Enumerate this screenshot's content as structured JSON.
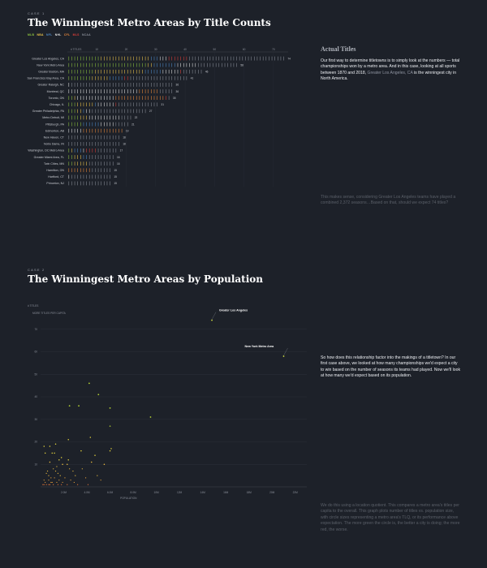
{
  "colors": {
    "background": "#1d2129",
    "MLB": "#8fc63f",
    "NBA": "#f2c94c",
    "NFL": "#4f8bc9",
    "NHL": "#e6e6e6",
    "CFL": "#f08c3c",
    "MLS": "#e0403a",
    "NCAA": "#8a8f99"
  },
  "case1": {
    "tag": "CASE 1",
    "title": "The Winningest Metro Areas by Title Counts",
    "legend": [
      "MLB",
      "NBA",
      "NFL",
      "NHL",
      "CFL",
      "MLS",
      "NCAA"
    ],
    "side_heading": "Actual Titles",
    "side_text": {
      "before": "Our first way to determine titletowns is to simply look at the numbers — total championships won by a metro area. And in this case, looking at all sports between 1870 and 2018,",
      "highlight": "Greater Los Angeles, CA",
      "after": "is the winningest city in North America."
    },
    "side_text_2": "This makes sense, considering Greater Los Angeles teams have played a combined 2,372 seasons…Based on that, should we expect 74 titles?"
  },
  "case2": {
    "tag": "CASE 2",
    "title": "The Winningest Metro Areas by Population",
    "side_text": "So how does this relationship factor into the makings of a titletown? In our first case above, we looked at how many championships we'd expect a city to win based on the number of seasons its teams had played. Now we'll look at how many we'd expect based on its population.",
    "side_text_2": "We do this using a location quotient. This compares a metro area's titles per capita to the overall. This graph plots number of titles vs. population size, with circle sizes representing a metro area's TLQ, or its performance above expectation. The more green the circle is, the better a city is doing; the more red, the worse."
  },
  "chart_data": [
    {
      "type": "bar",
      "title": "The Winningest Metro Areas by Title Counts",
      "x_axis_label": "# TITLES",
      "x_ticks": [
        10,
        20,
        30,
        40,
        50,
        60,
        70
      ],
      "xlim": [
        0,
        75
      ],
      "categories": [
        "Greater Los Angeles, CA",
        "New York Metro Area",
        "Greater Boston, MA",
        "San Francisco Bay Area, CA",
        "Greater Raleigh, NC",
        "Montreal, QC",
        "Toronto, ON",
        "Chicago, IL",
        "Greater Philadelphia, PA",
        "Metro Detroit, MI",
        "Pittsburgh, PA",
        "Edmonton, AB",
        "New Haven, CT",
        "Notre Dame, IN",
        "Washington, DC Metro Area",
        "Greater Miami Area, FL",
        "Twin Cities, MN",
        "Hamilton, ON",
        "Hartford, CT",
        "Princeton, NJ"
      ],
      "values": [
        74,
        58,
        46,
        41,
        36,
        36,
        35,
        31,
        27,
        22,
        21,
        19,
        18,
        18,
        17,
        16,
        16,
        15,
        15,
        15
      ],
      "series_by_league": [
        {
          "name": "MLB",
          "values": [
            11,
            27,
            9,
            8,
            0,
            0,
            2,
            3,
            3,
            4,
            5,
            0,
            0,
            0,
            1,
            2,
            2,
            0,
            0,
            0
          ]
        },
        {
          "name": "NBA",
          "values": [
            17,
            2,
            17,
            6,
            0,
            0,
            1,
            6,
            2,
            3,
            0,
            0,
            0,
            0,
            1,
            3,
            5,
            0,
            0,
            0
          ]
        },
        {
          "name": "NFL",
          "values": [
            3,
            8,
            6,
            5,
            0,
            0,
            0,
            1,
            1,
            0,
            6,
            0,
            0,
            0,
            3,
            2,
            0,
            0,
            0,
            0
          ]
        },
        {
          "name": "NHL",
          "values": [
            3,
            7,
            6,
            0,
            1,
            24,
            13,
            6,
            2,
            11,
            5,
            5,
            0,
            0,
            1,
            0,
            0,
            0,
            1,
            0
          ]
        },
        {
          "name": "CFL",
          "values": [
            0,
            0,
            0,
            0,
            0,
            7,
            17,
            0,
            0,
            0,
            0,
            14,
            0,
            0,
            0,
            0,
            0,
            8,
            0,
            0
          ]
        },
        {
          "name": "MLS",
          "values": [
            7,
            0,
            1,
            2,
            0,
            0,
            1,
            1,
            0,
            0,
            0,
            0,
            0,
            0,
            4,
            0,
            0,
            0,
            0,
            0
          ]
        },
        {
          "name": "NCAA",
          "values": [
            33,
            14,
            7,
            20,
            35,
            5,
            1,
            14,
            19,
            4,
            5,
            0,
            18,
            18,
            7,
            9,
            9,
            7,
            14,
            15
          ]
        }
      ]
    },
    {
      "type": "scatter",
      "title": "The Winningest Metro Areas by Population",
      "y_axis_label": "# TITLES",
      "size_label": "MORE TITLES PER CAPITA",
      "x_axis_label": "POPULATION",
      "x_ticks": [
        "2.0M",
        "4.0M",
        "6.0M",
        "8.0M",
        "10M",
        "12M",
        "14M",
        "16M",
        "18M",
        "20M",
        "22M"
      ],
      "y_ticks": [
        10,
        20,
        30,
        40,
        50,
        60,
        70
      ],
      "xlim": [
        0,
        23000000
      ],
      "ylim": [
        0,
        80
      ],
      "labeled_points": [
        {
          "name": "Greater Los Angeles",
          "x": 14800000,
          "y": 74
        },
        {
          "name": "New York Metro Area",
          "x": 21000000,
          "y": 58
        }
      ],
      "points": [
        [
          4200000,
          46
        ],
        [
          5000000,
          41
        ],
        [
          2500000,
          36
        ],
        [
          3300000,
          36
        ],
        [
          6000000,
          35
        ],
        [
          9500000,
          31
        ],
        [
          6000000,
          27
        ],
        [
          4300000,
          22
        ],
        [
          2400000,
          21
        ],
        [
          1300000,
          19
        ],
        [
          800000,
          18
        ],
        [
          300000,
          18
        ],
        [
          6100000,
          17
        ],
        [
          6000000,
          16
        ],
        [
          3500000,
          16
        ],
        [
          1000000,
          15
        ],
        [
          1200000,
          15
        ],
        [
          400000,
          15
        ],
        [
          4700000,
          14
        ],
        [
          1800000,
          13
        ],
        [
          2400000,
          12
        ],
        [
          1600000,
          12
        ],
        [
          4400000,
          11
        ],
        [
          800000,
          11
        ],
        [
          1900000,
          10
        ],
        [
          2300000,
          10
        ],
        [
          5500000,
          10
        ],
        [
          1400000,
          9
        ],
        [
          2500000,
          8
        ],
        [
          1100000,
          8
        ],
        [
          3600000,
          8
        ],
        [
          600000,
          7
        ],
        [
          1300000,
          7
        ],
        [
          2800000,
          7
        ],
        [
          500000,
          6
        ],
        [
          1500000,
          6
        ],
        [
          3000000,
          5
        ],
        [
          700000,
          5
        ],
        [
          1700000,
          5
        ],
        [
          4900000,
          5
        ],
        [
          2100000,
          4
        ],
        [
          900000,
          4
        ],
        [
          1200000,
          4
        ],
        [
          3900000,
          4
        ],
        [
          300000,
          3
        ],
        [
          700000,
          3
        ],
        [
          1600000,
          3
        ],
        [
          2600000,
          3
        ],
        [
          5200000,
          3
        ],
        [
          400000,
          2
        ],
        [
          900000,
          2
        ],
        [
          1400000,
          2
        ],
        [
          1900000,
          2
        ],
        [
          2900000,
          2
        ],
        [
          200000,
          1
        ],
        [
          500000,
          1
        ],
        [
          800000,
          1
        ],
        [
          1100000,
          1
        ],
        [
          1500000,
          1
        ],
        [
          2300000,
          1
        ],
        [
          3200000,
          1
        ],
        [
          4100000,
          1
        ],
        [
          300000,
          1
        ],
        [
          700000,
          1
        ],
        [
          1000000,
          2
        ],
        [
          1800000,
          1
        ]
      ]
    }
  ]
}
